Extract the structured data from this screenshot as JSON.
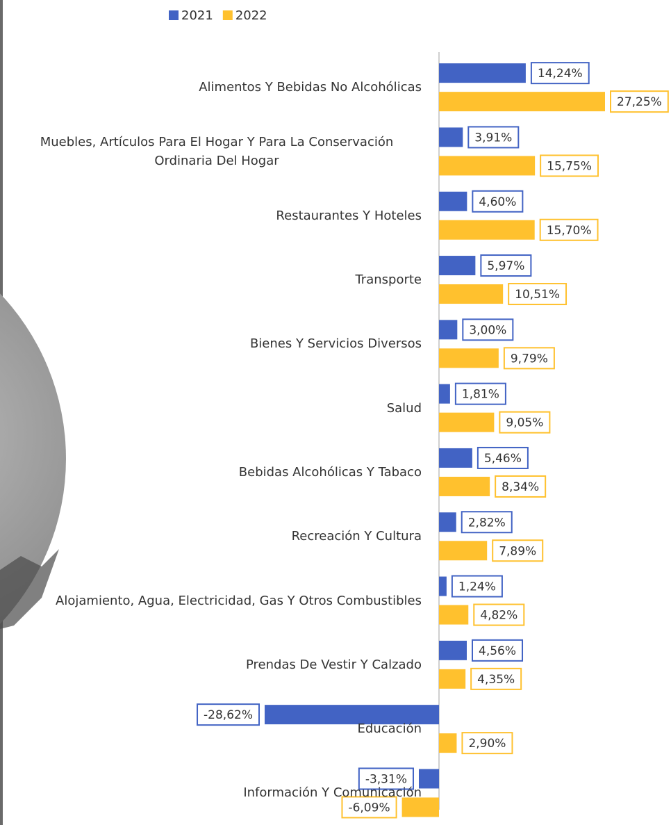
{
  "chart_data": {
    "type": "bar",
    "orientation": "horizontal",
    "categories": [
      "Alimentos Y Bebidas No Alcohólicas",
      "Muebles, Artículos Para El Hogar Y Para La Conservación Ordinaria Del Hogar",
      "Restaurantes Y Hoteles",
      "Transporte",
      "Bienes Y Servicios Diversos",
      "Salud",
      "Bebidas Alcohólicas Y Tabaco",
      "Recreación Y Cultura",
      "Alojamiento, Agua, Electricidad, Gas Y Otros Combustibles",
      "Prendas De Vestir Y Calzado",
      "Educación",
      "Información Y Comunicación"
    ],
    "series": [
      {
        "name": "2021",
        "color": "#4263c4",
        "values": [
          14.24,
          3.91,
          4.6,
          5.97,
          3.0,
          1.81,
          5.46,
          2.82,
          1.24,
          4.56,
          -28.62,
          -3.31
        ],
        "value_labels": [
          "14,24%",
          "3,91%",
          "4,60%",
          "5,97%",
          "3,00%",
          "1,81%",
          "5,46%",
          "2,82%",
          "1,24%",
          "4,56%",
          "-28,62%",
          "-3,31%"
        ]
      },
      {
        "name": "2022",
        "color": "#ffc12e",
        "values": [
          27.25,
          15.75,
          15.7,
          10.51,
          9.79,
          9.05,
          8.34,
          7.89,
          4.82,
          4.35,
          2.9,
          -6.09
        ],
        "value_labels": [
          "27,25%",
          "15,75%",
          "15,70%",
          "10,51%",
          "9,79%",
          "9,05%",
          "8,34%",
          "7,89%",
          "4,82%",
          "4,35%",
          "2,90%",
          "-6,09%"
        ]
      }
    ],
    "legend": "top"
  }
}
